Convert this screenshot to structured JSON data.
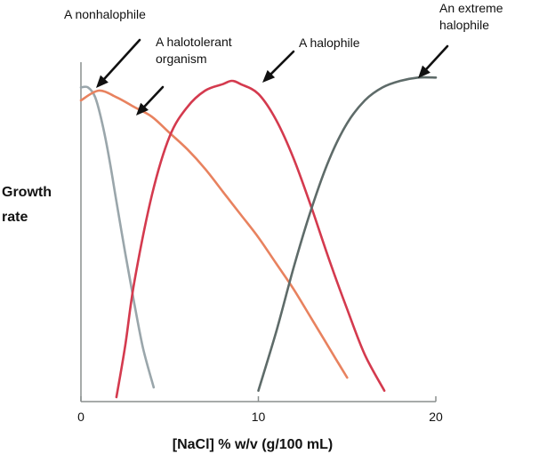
{
  "chart_data": {
    "type": "line",
    "title": "",
    "xlabel": "[NaCl] % w/v (g/100 mL)",
    "ylabel_lines": [
      "Growth",
      "rate"
    ],
    "xlim": [
      0,
      20
    ],
    "ylim": [
      0,
      1
    ],
    "xticks": [
      0,
      10,
      20
    ],
    "grid": false,
    "series": [
      {
        "name": "A nonhalophile",
        "label_lines": [
          "A nonhalophile"
        ],
        "color": "#9aa6ab",
        "x": [
          0,
          0.4,
          0.8,
          1.2,
          1.6,
          2.0,
          2.5,
          3.0,
          3.5,
          4.1
        ],
        "y": [
          0.95,
          0.95,
          0.92,
          0.84,
          0.73,
          0.6,
          0.44,
          0.29,
          0.15,
          0.03
        ]
      },
      {
        "name": "A halotolerant organism",
        "label_lines": [
          "A halotolerant",
          "organism"
        ],
        "color": "#e8825f",
        "x": [
          0,
          1,
          2,
          3,
          4,
          5,
          6,
          7,
          8,
          9,
          10,
          11,
          12,
          13,
          14,
          15
        ],
        "y": [
          0.91,
          0.94,
          0.92,
          0.89,
          0.86,
          0.81,
          0.76,
          0.7,
          0.63,
          0.56,
          0.49,
          0.41,
          0.33,
          0.24,
          0.15,
          0.06
        ]
      },
      {
        "name": "A halophile",
        "label_lines": [
          "A halophile"
        ],
        "color": "#d43a4e",
        "x": [
          2,
          2.5,
          3,
          4,
          5,
          6,
          7,
          8,
          8.5,
          9,
          10,
          11,
          12,
          13,
          14,
          15,
          16,
          17.1
        ],
        "y": [
          0.0,
          0.16,
          0.35,
          0.62,
          0.8,
          0.89,
          0.94,
          0.96,
          0.97,
          0.96,
          0.93,
          0.85,
          0.73,
          0.58,
          0.42,
          0.27,
          0.13,
          0.02
        ]
      },
      {
        "name": "An extreme halophile",
        "label_lines": [
          "An extreme",
          "halophile"
        ],
        "color": "#5e6b69",
        "x": [
          10,
          11,
          12,
          13,
          14,
          15,
          16,
          17,
          18,
          19,
          20
        ],
        "y": [
          0.02,
          0.2,
          0.4,
          0.58,
          0.73,
          0.84,
          0.91,
          0.95,
          0.97,
          0.98,
          0.98
        ]
      }
    ]
  }
}
